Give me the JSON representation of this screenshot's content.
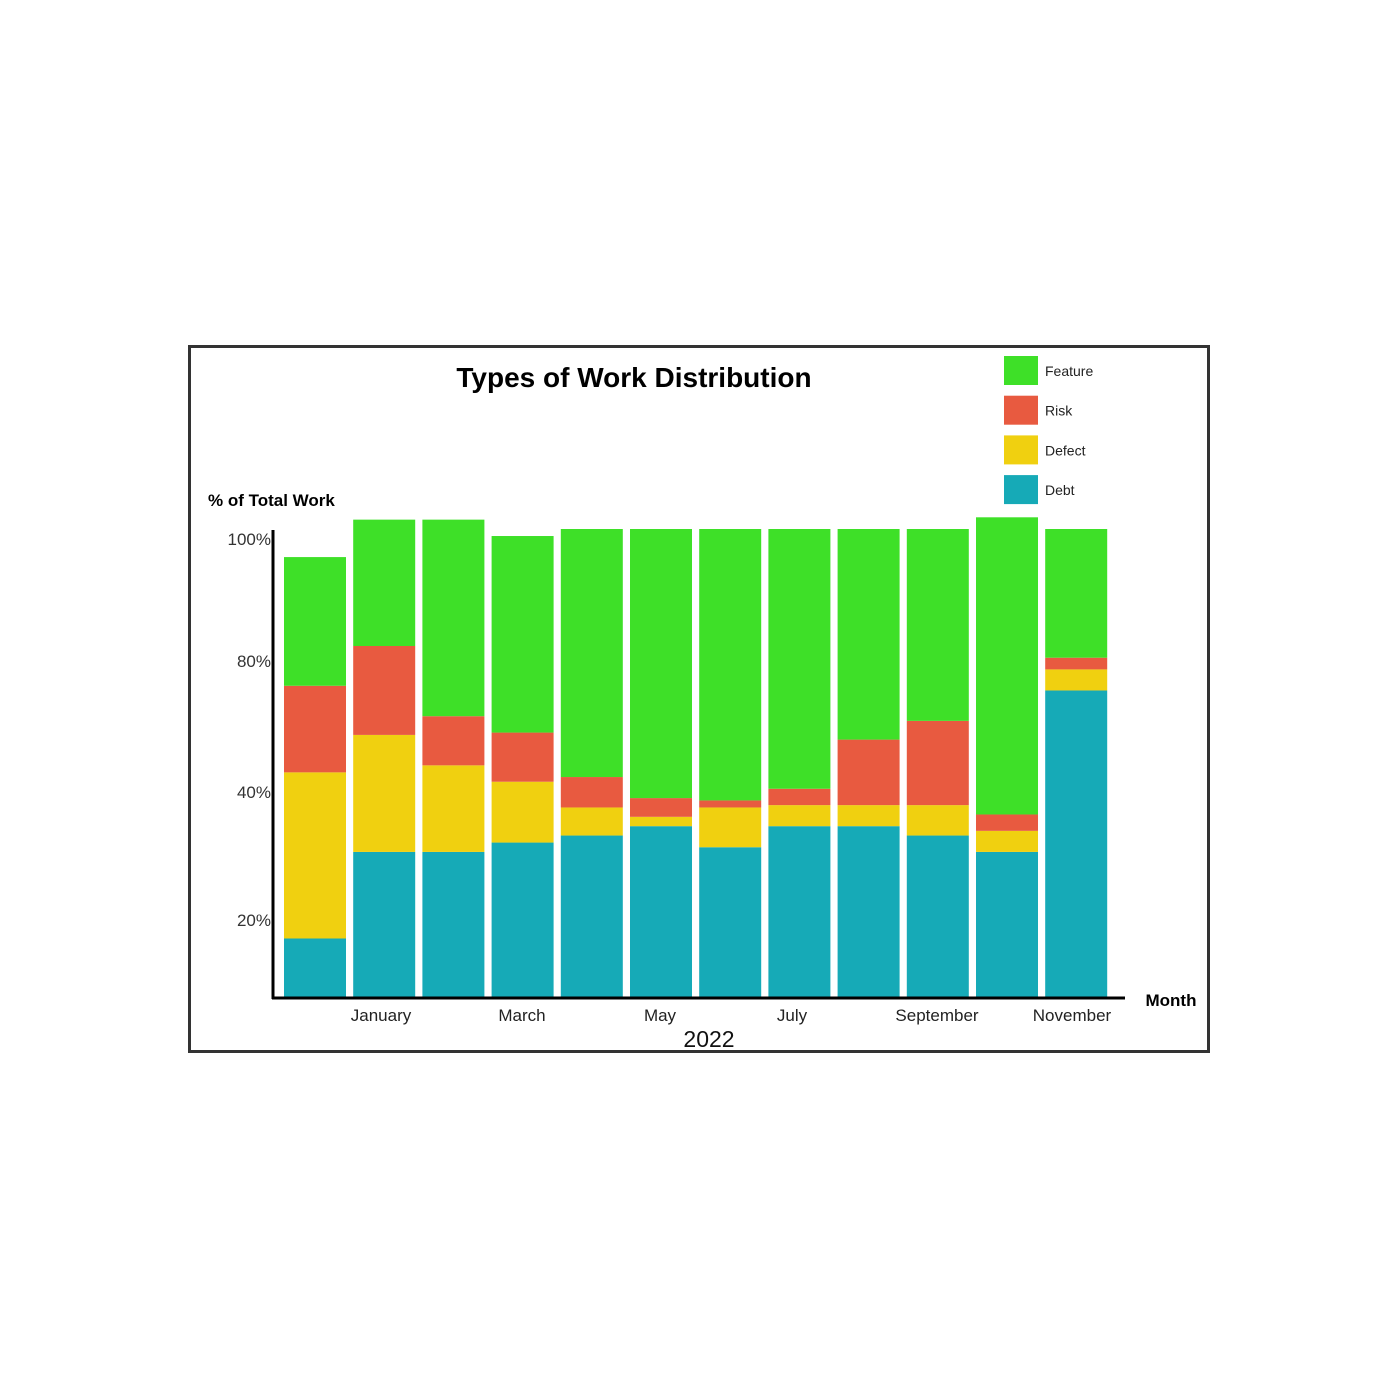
{
  "chart_data": {
    "type": "bar",
    "stacked": true,
    "title": "Types of Work Distribution",
    "ylabel": "% of Total Work",
    "xlabel": "Month",
    "xlabel_secondary": "2022",
    "y_ticks": [
      {
        "value": 100,
        "label": "100%"
      },
      {
        "value": 80,
        "label": "80%"
      },
      {
        "value": 40,
        "label": "40%"
      },
      {
        "value": 20,
        "label": "20%"
      }
    ],
    "x_tick_labels": [
      "January",
      "March",
      "May",
      "July",
      "September",
      "November"
    ],
    "legend_position": "top-right",
    "series": [
      {
        "name": "Debt",
        "color": "#16AAB7",
        "values": [
          12.5,
          31,
          31,
          33,
          34.5,
          36.5,
          32,
          36.5,
          36.5,
          34.5,
          31,
          65.5
        ]
      },
      {
        "name": "Defect",
        "color": "#F0D010",
        "values": [
          35.5,
          25,
          18.5,
          13,
          6,
          2,
          8.5,
          4.5,
          4.5,
          6.5,
          4.5,
          4.5
        ]
      },
      {
        "name": "Risk",
        "color": "#E85A40",
        "values": [
          18.5,
          19,
          10.5,
          10.5,
          6.5,
          4,
          1.5,
          3.5,
          14,
          18,
          3.5,
          2.5
        ]
      },
      {
        "name": "Feature",
        "color": "#3EE028",
        "values": [
          27.5,
          27,
          42,
          42,
          53,
          57.5,
          58,
          55.5,
          45,
          41,
          63.5,
          27.5
        ]
      }
    ],
    "legend": [
      {
        "name": "Feature",
        "color": "#3EE028"
      },
      {
        "name": "Risk",
        "color": "#E85A40"
      },
      {
        "name": "Defect",
        "color": "#F0D010"
      },
      {
        "name": "Debt",
        "color": "#16AAB7"
      }
    ]
  }
}
